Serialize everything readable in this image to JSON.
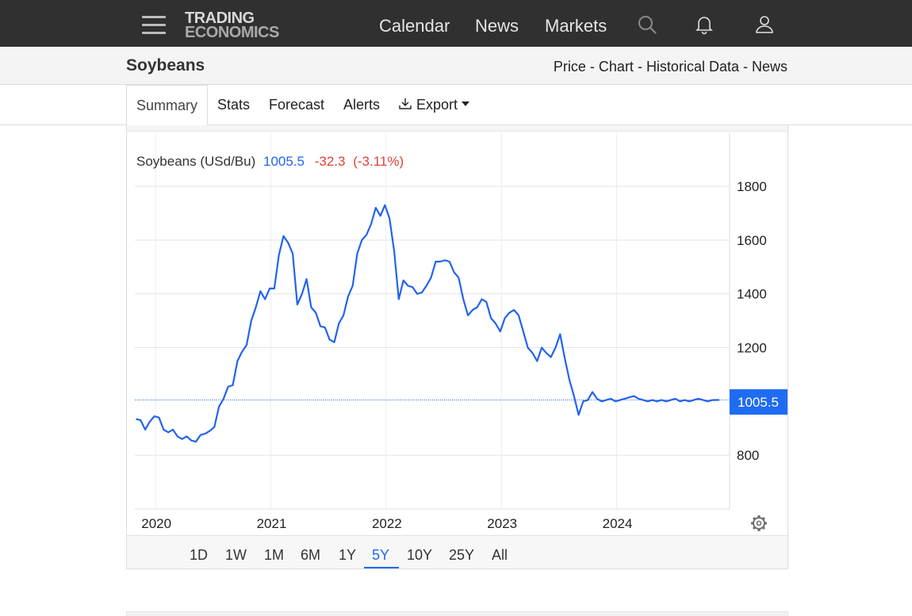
{
  "brand": {
    "line1": "TRADING",
    "line2": "ECONOMICS"
  },
  "nav": {
    "calendar": "Calendar",
    "news": "News",
    "markets": "Markets"
  },
  "icons": {
    "menu": "hamburger-menu-icon",
    "search": "search-icon",
    "bell": "bell-icon",
    "user": "user-icon",
    "settings": "gear-icon",
    "download": "download-icon"
  },
  "page": {
    "title": "Soybeans",
    "links": [
      "Price",
      "Chart",
      "Historical Data",
      "News"
    ],
    "separator": " - "
  },
  "tabs": {
    "summary": "Summary",
    "stats": "Stats",
    "forecast": "Forecast",
    "alerts": "Alerts",
    "export": "Export"
  },
  "colors": {
    "line": "#2463eb",
    "change": "#e0413a",
    "accent": "#1f6cf2",
    "topbar": "#303030"
  },
  "chart_data": {
    "type": "line",
    "title": "Soybeans (USd/Bu)",
    "last_value": "1005.5",
    "change": "-32.3",
    "change_pct": "(-3.11%)",
    "last_label": "1005.5",
    "ylim": [
      600,
      1800
    ],
    "yticks": [
      "1800",
      "1600",
      "1400",
      "1200",
      "800"
    ],
    "ytick_values": [
      1800,
      1600,
      1400,
      1200,
      800
    ],
    "xticks": [
      "2020",
      "2021",
      "2022",
      "2023",
      "2024"
    ],
    "xtick_values": [
      2020.0,
      2021.0,
      2022.0,
      2023.0,
      2024.0
    ],
    "xlim": [
      2019.82,
      2024.98
    ],
    "series": [
      {
        "x": [
          2019.83,
          2019.87,
          2019.91,
          2019.95,
          2019.99,
          2020.03,
          2020.07,
          2020.11,
          2020.15,
          2020.19,
          2020.23,
          2020.27,
          2020.31,
          2020.35,
          2020.39,
          2020.43,
          2020.47,
          2020.51,
          2020.55,
          2020.59,
          2020.63,
          2020.67,
          2020.71,
          2020.75,
          2020.79,
          2020.83,
          2020.87,
          2020.91,
          2020.95,
          2020.99,
          2021.03,
          2021.07,
          2021.11,
          2021.15,
          2021.19,
          2021.23,
          2021.27,
          2021.31,
          2021.35,
          2021.39,
          2021.43,
          2021.47,
          2021.51,
          2021.55,
          2021.59,
          2021.63,
          2021.67,
          2021.71,
          2021.75,
          2021.79,
          2021.83,
          2021.87,
          2021.91,
          2021.95,
          2021.99,
          2022.03,
          2022.07,
          2022.11,
          2022.15,
          2022.19,
          2022.23,
          2022.27,
          2022.31,
          2022.35,
          2022.39,
          2022.43,
          2022.47,
          2022.51,
          2022.55,
          2022.59,
          2022.63,
          2022.67,
          2022.71,
          2022.75,
          2022.79,
          2022.83,
          2022.87,
          2022.91,
          2022.95,
          2022.99,
          2023.03,
          2023.07,
          2023.11,
          2023.15,
          2023.19,
          2023.23,
          2023.27,
          2023.31,
          2023.35,
          2023.39,
          2023.43,
          2023.47,
          2023.51,
          2023.55,
          2023.59,
          2023.63,
          2023.67,
          2023.71,
          2023.75,
          2023.79,
          2023.83,
          2023.87,
          2023.91,
          2023.95,
          2023.99,
          2024.03,
          2024.07,
          2024.11,
          2024.15,
          2024.19,
          2024.23,
          2024.27,
          2024.31,
          2024.35,
          2024.39,
          2024.43,
          2024.47,
          2024.51,
          2024.55,
          2024.59,
          2024.63,
          2024.67,
          2024.71,
          2024.75,
          2024.79,
          2024.83,
          2024.87,
          2024.89
        ],
        "values": [
          935,
          930,
          895,
          925,
          945,
          940,
          895,
          885,
          895,
          870,
          860,
          870,
          855,
          850,
          875,
          880,
          890,
          905,
          980,
          1010,
          1055,
          1060,
          1150,
          1185,
          1210,
          1300,
          1350,
          1410,
          1380,
          1420,
          1420,
          1545,
          1615,
          1590,
          1550,
          1360,
          1400,
          1455,
          1350,
          1330,
          1280,
          1275,
          1230,
          1220,
          1290,
          1320,
          1390,
          1430,
          1550,
          1600,
          1620,
          1660,
          1720,
          1690,
          1730,
          1680,
          1560,
          1380,
          1450,
          1430,
          1425,
          1400,
          1405,
          1430,
          1460,
          1520,
          1520,
          1525,
          1520,
          1480,
          1460,
          1380,
          1320,
          1340,
          1350,
          1380,
          1370,
          1310,
          1290,
          1260,
          1310,
          1330,
          1340,
          1320,
          1260,
          1200,
          1180,
          1150,
          1200,
          1180,
          1165,
          1200,
          1250,
          1160,
          1080,
          1020,
          950,
          1000,
          1005,
          1035,
          1010,
          1000,
          1005,
          1010,
          1000,
          1005,
          1010,
          1015,
          1020,
          1010,
          1005,
          1000,
          1005,
          1000,
          1005,
          1000,
          1005,
          1010,
          1000,
          1005,
          1000,
          1005,
          1010,
          1005,
          1000,
          1005,
          1005.5,
          1005.5
        ]
      }
    ]
  },
  "settings_icon": "gear-icon",
  "ranges": [
    "1D",
    "1W",
    "1M",
    "6M",
    "1Y",
    "5Y",
    "10Y",
    "25Y",
    "All"
  ],
  "active_range": "5Y"
}
